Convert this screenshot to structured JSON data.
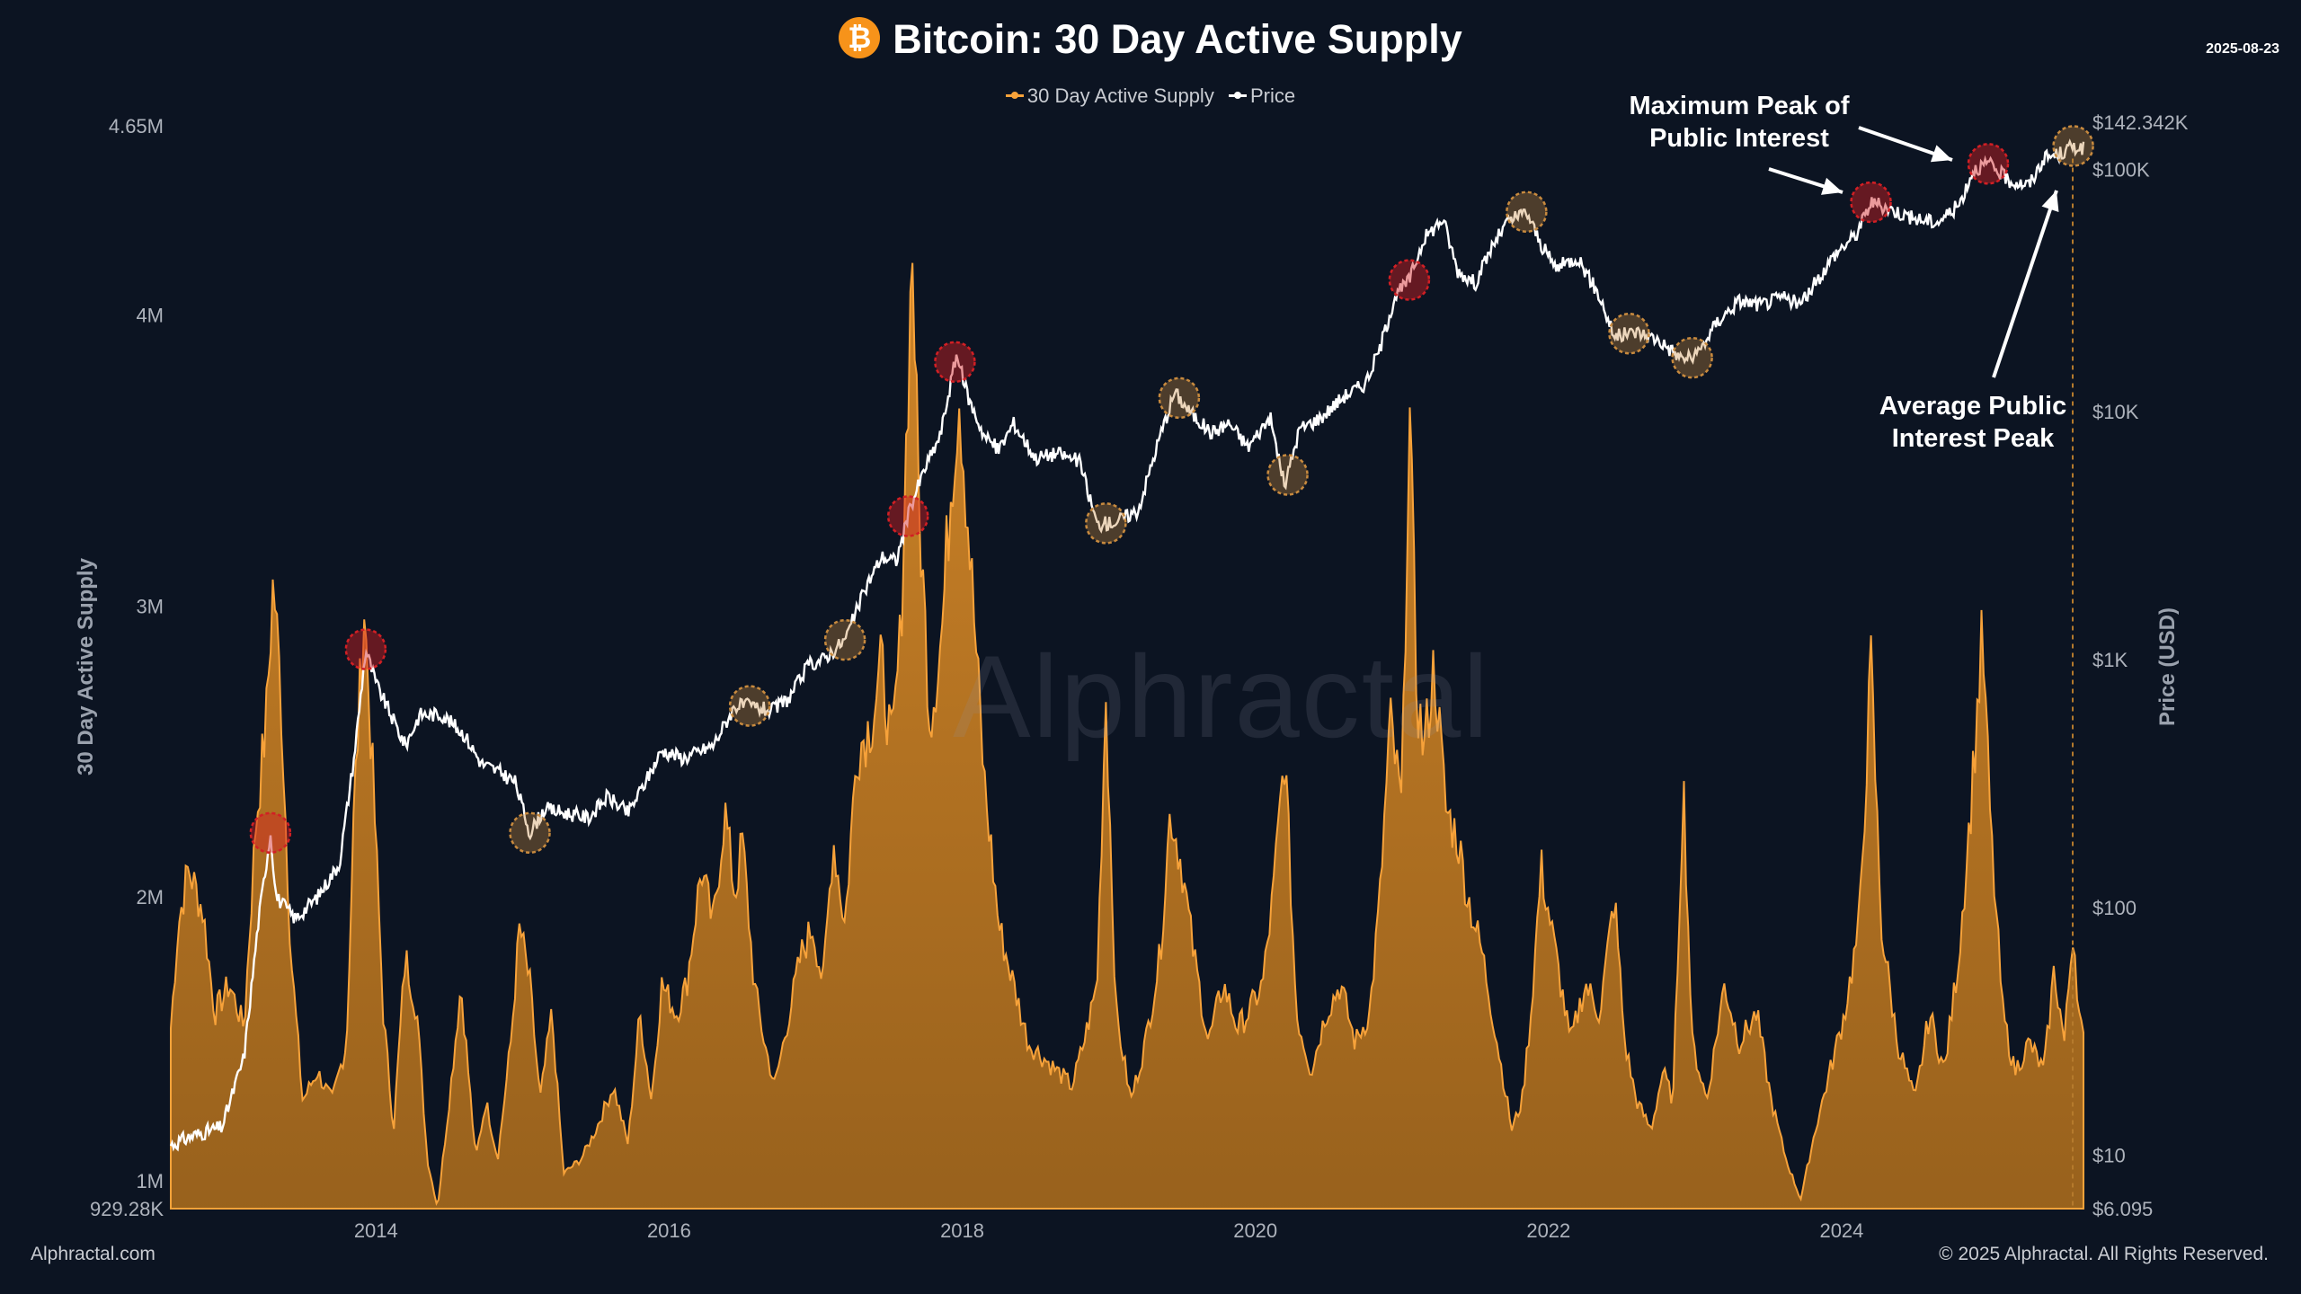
{
  "header": {
    "title": "Bitcoin: 30 Day Active Supply",
    "logo_glyph": "₿",
    "date": "2025-08-23",
    "watermark": "Alphractal"
  },
  "legend": {
    "supply_label": "30 Day Active Supply",
    "price_label": "Price"
  },
  "footer": {
    "left": "Alphractal.com",
    "right": "© 2025 Alphractal. All Rights Reserved."
  },
  "annotations": {
    "max_peak": [
      "Maximum Peak of",
      "Public Interest"
    ],
    "avg_peak": [
      "Average Public",
      "Interest Peak"
    ]
  },
  "colors": {
    "background": "#0c1422",
    "supply_fill": "#b8741f",
    "supply_line": "#f7a23a",
    "price_line": "#ffffff",
    "max_peak_marker": "#d21f24",
    "avg_peak_marker": "#c88a3e",
    "logo": "#f7931a"
  },
  "chart_data": {
    "type": "area",
    "title": "Bitcoin: 30 Day Active Supply",
    "x_range": [
      2012.6,
      2025.65
    ],
    "x_ticks": [
      "2014",
      "2016",
      "2018",
      "2020",
      "2022",
      "2024"
    ],
    "left_axis": {
      "label": "30 Day Active Supply",
      "ticks": [
        "929.28K",
        "1M",
        "2M",
        "3M",
        "4M",
        "4.65M"
      ],
      "range_labels": [
        "929.28K",
        "4.65M"
      ]
    },
    "right_axis": {
      "label": "Price (USD)",
      "scale": "log",
      "ticks": [
        "$6.095",
        "$10",
        "$100",
        "$1K",
        "$10K",
        "$100K",
        "$142.342K"
      ]
    },
    "grid": false,
    "legend_position": "top-center",
    "series": [
      {
        "name": "30 Day Active Supply",
        "points": [
          [
            2012.6,
            1.55
          ],
          [
            2012.65,
            1.9
          ],
          [
            2012.72,
            2.1
          ],
          [
            2012.82,
            1.95
          ],
          [
            2012.9,
            1.6
          ],
          [
            2013.0,
            1.7
          ],
          [
            2013.1,
            1.55
          ],
          [
            2013.18,
            2.25
          ],
          [
            2013.25,
            2.6
          ],
          [
            2013.3,
            3.1
          ],
          [
            2013.35,
            2.7
          ],
          [
            2013.42,
            1.8
          ],
          [
            2013.5,
            1.3
          ],
          [
            2013.6,
            1.4
          ],
          [
            2013.7,
            1.3
          ],
          [
            2013.8,
            1.5
          ],
          [
            2013.85,
            2.3
          ],
          [
            2013.92,
            3.0
          ],
          [
            2013.98,
            2.4
          ],
          [
            2014.05,
            1.6
          ],
          [
            2014.12,
            1.2
          ],
          [
            2014.2,
            1.8
          ],
          [
            2014.28,
            1.6
          ],
          [
            2014.35,
            1.1
          ],
          [
            2014.42,
            0.93
          ],
          [
            2014.5,
            1.3
          ],
          [
            2014.58,
            1.7
          ],
          [
            2014.68,
            1.1
          ],
          [
            2014.75,
            1.3
          ],
          [
            2014.83,
            1.1
          ],
          [
            2014.92,
            1.5
          ],
          [
            2014.98,
            1.9
          ],
          [
            2015.05,
            1.7
          ],
          [
            2015.12,
            1.3
          ],
          [
            2015.2,
            1.6
          ],
          [
            2015.28,
            1.05
          ],
          [
            2015.4,
            1.1
          ],
          [
            2015.5,
            1.2
          ],
          [
            2015.62,
            1.35
          ],
          [
            2015.72,
            1.15
          ],
          [
            2015.8,
            1.6
          ],
          [
            2015.88,
            1.3
          ],
          [
            2015.95,
            1.7
          ],
          [
            2016.05,
            1.6
          ],
          [
            2016.12,
            1.7
          ],
          [
            2016.22,
            2.1
          ],
          [
            2016.3,
            1.9
          ],
          [
            2016.38,
            2.3
          ],
          [
            2016.45,
            2.0
          ],
          [
            2016.5,
            2.2
          ],
          [
            2016.58,
            1.7
          ],
          [
            2016.65,
            1.5
          ],
          [
            2016.72,
            1.35
          ],
          [
            2016.82,
            1.6
          ],
          [
            2016.9,
            1.8
          ],
          [
            2016.98,
            1.9
          ],
          [
            2017.05,
            1.7
          ],
          [
            2017.12,
            2.2
          ],
          [
            2017.2,
            1.9
          ],
          [
            2017.28,
            2.5
          ],
          [
            2017.38,
            2.6
          ],
          [
            2017.45,
            2.8
          ],
          [
            2017.52,
            2.5
          ],
          [
            2017.58,
            2.9
          ],
          [
            2017.62,
            3.6
          ],
          [
            2017.66,
            4.25
          ],
          [
            2017.7,
            3.4
          ],
          [
            2017.78,
            2.6
          ],
          [
            2017.86,
            2.9
          ],
          [
            2017.92,
            3.4
          ],
          [
            2017.98,
            3.75
          ],
          [
            2018.05,
            3.2
          ],
          [
            2018.15,
            2.4
          ],
          [
            2018.25,
            1.9
          ],
          [
            2018.35,
            1.7
          ],
          [
            2018.45,
            1.5
          ],
          [
            2018.55,
            1.45
          ],
          [
            2018.65,
            1.4
          ],
          [
            2018.75,
            1.35
          ],
          [
            2018.83,
            1.5
          ],
          [
            2018.92,
            1.7
          ],
          [
            2018.98,
            2.7
          ],
          [
            2019.05,
            1.6
          ],
          [
            2019.15,
            1.3
          ],
          [
            2019.25,
            1.5
          ],
          [
            2019.35,
            1.8
          ],
          [
            2019.42,
            2.3
          ],
          [
            2019.5,
            2.1
          ],
          [
            2019.58,
            1.8
          ],
          [
            2019.68,
            1.5
          ],
          [
            2019.78,
            1.7
          ],
          [
            2019.88,
            1.55
          ],
          [
            2019.95,
            1.6
          ],
          [
            2020.05,
            1.7
          ],
          [
            2020.12,
            2.0
          ],
          [
            2020.2,
            2.5
          ],
          [
            2020.28,
            1.6
          ],
          [
            2020.38,
            1.4
          ],
          [
            2020.48,
            1.6
          ],
          [
            2020.58,
            1.7
          ],
          [
            2020.68,
            1.5
          ],
          [
            2020.78,
            1.6
          ],
          [
            2020.85,
            2.0
          ],
          [
            2020.92,
            2.6
          ],
          [
            2021.0,
            2.3
          ],
          [
            2021.05,
            3.7
          ],
          [
            2021.1,
            2.7
          ],
          [
            2021.15,
            2.5
          ],
          [
            2021.22,
            2.8
          ],
          [
            2021.3,
            2.3
          ],
          [
            2021.38,
            2.2
          ],
          [
            2021.45,
            2.0
          ],
          [
            2021.55,
            1.8
          ],
          [
            2021.65,
            1.5
          ],
          [
            2021.75,
            1.2
          ],
          [
            2021.82,
            1.3
          ],
          [
            2021.88,
            1.6
          ],
          [
            2021.95,
            2.1
          ],
          [
            2022.05,
            1.8
          ],
          [
            2022.15,
            1.5
          ],
          [
            2022.25,
            1.7
          ],
          [
            2022.35,
            1.6
          ],
          [
            2022.45,
            2.0
          ],
          [
            2022.52,
            1.5
          ],
          [
            2022.6,
            1.3
          ],
          [
            2022.7,
            1.2
          ],
          [
            2022.78,
            1.4
          ],
          [
            2022.85,
            1.3
          ],
          [
            2022.92,
            2.4
          ],
          [
            2022.98,
            1.5
          ],
          [
            2023.08,
            1.3
          ],
          [
            2023.2,
            1.7
          ],
          [
            2023.3,
            1.5
          ],
          [
            2023.42,
            1.6
          ],
          [
            2023.52,
            1.3
          ],
          [
            2023.62,
            1.1
          ],
          [
            2023.72,
            0.96
          ],
          [
            2023.82,
            1.2
          ],
          [
            2023.92,
            1.4
          ],
          [
            2024.02,
            1.6
          ],
          [
            2024.12,
            1.9
          ],
          [
            2024.2,
            2.8
          ],
          [
            2024.27,
            1.9
          ],
          [
            2024.38,
            1.5
          ],
          [
            2024.5,
            1.3
          ],
          [
            2024.6,
            1.6
          ],
          [
            2024.7,
            1.4
          ],
          [
            2024.8,
            1.8
          ],
          [
            2024.88,
            2.3
          ],
          [
            2024.96,
            2.9
          ],
          [
            2025.02,
            2.2
          ],
          [
            2025.1,
            1.6
          ],
          [
            2025.18,
            1.4
          ],
          [
            2025.28,
            1.5
          ],
          [
            2025.38,
            1.4
          ],
          [
            2025.45,
            1.75
          ],
          [
            2025.52,
            1.5
          ],
          [
            2025.58,
            1.9
          ],
          [
            2025.62,
            1.6
          ],
          [
            2025.65,
            1.5
          ]
        ]
      },
      {
        "name": "Price",
        "points": [
          [
            2012.6,
            11
          ],
          [
            2012.75,
            12
          ],
          [
            2012.95,
            13
          ],
          [
            2013.1,
            25
          ],
          [
            2013.2,
            90
          ],
          [
            2013.28,
            200
          ],
          [
            2013.32,
            110
          ],
          [
            2013.45,
            90
          ],
          [
            2013.6,
            110
          ],
          [
            2013.75,
            150
          ],
          [
            2013.85,
            400
          ],
          [
            2013.93,
            1100
          ],
          [
            2014.0,
            800
          ],
          [
            2014.1,
            600
          ],
          [
            2014.2,
            450
          ],
          [
            2014.3,
            600
          ],
          [
            2014.45,
            600
          ],
          [
            2014.6,
            500
          ],
          [
            2014.72,
            380
          ],
          [
            2014.85,
            350
          ],
          [
            2014.95,
            320
          ],
          [
            2015.05,
            200
          ],
          [
            2015.15,
            250
          ],
          [
            2015.3,
            240
          ],
          [
            2015.45,
            230
          ],
          [
            2015.58,
            280
          ],
          [
            2015.72,
            240
          ],
          [
            2015.85,
            330
          ],
          [
            2015.95,
            430
          ],
          [
            2016.1,
            400
          ],
          [
            2016.3,
            450
          ],
          [
            2016.45,
            650
          ],
          [
            2016.55,
            650
          ],
          [
            2016.7,
            620
          ],
          [
            2016.82,
            700
          ],
          [
            2016.95,
            950
          ],
          [
            2017.05,
            1000
          ],
          [
            2017.2,
            1200
          ],
          [
            2017.35,
            2000
          ],
          [
            2017.45,
            2600
          ],
          [
            2017.55,
            2500
          ],
          [
            2017.65,
            4200
          ],
          [
            2017.75,
            6000
          ],
          [
            2017.85,
            8000
          ],
          [
            2017.96,
            17000
          ],
          [
            2018.05,
            11000
          ],
          [
            2018.15,
            8000
          ],
          [
            2018.25,
            7000
          ],
          [
            2018.35,
            9000
          ],
          [
            2018.5,
            6500
          ],
          [
            2018.65,
            6800
          ],
          [
            2018.8,
            6300
          ],
          [
            2018.92,
            3500
          ],
          [
            2019.05,
            3600
          ],
          [
            2019.2,
            4000
          ],
          [
            2019.35,
            8000
          ],
          [
            2019.45,
            12000
          ],
          [
            2019.55,
            10000
          ],
          [
            2019.7,
            8200
          ],
          [
            2019.82,
            9000
          ],
          [
            2019.95,
            7200
          ],
          [
            2020.1,
            9500
          ],
          [
            2020.2,
            5000
          ],
          [
            2020.3,
            8500
          ],
          [
            2020.45,
            9500
          ],
          [
            2020.6,
            11500
          ],
          [
            2020.75,
            13000
          ],
          [
            2020.85,
            18000
          ],
          [
            2020.95,
            29000
          ],
          [
            2021.05,
            34000
          ],
          [
            2021.15,
            50000
          ],
          [
            2021.28,
            60000
          ],
          [
            2021.38,
            37000
          ],
          [
            2021.5,
            33000
          ],
          [
            2021.62,
            47000
          ],
          [
            2021.72,
            58000
          ],
          [
            2021.85,
            64000
          ],
          [
            2021.95,
            47000
          ],
          [
            2022.05,
            38000
          ],
          [
            2022.2,
            42000
          ],
          [
            2022.35,
            29000
          ],
          [
            2022.45,
            20000
          ],
          [
            2022.6,
            21000
          ],
          [
            2022.75,
            19500
          ],
          [
            2022.9,
            16500
          ],
          [
            2023.0,
            16500
          ],
          [
            2023.15,
            23000
          ],
          [
            2023.3,
            28000
          ],
          [
            2023.45,
            27000
          ],
          [
            2023.6,
            29000
          ],
          [
            2023.72,
            27000
          ],
          [
            2023.85,
            35000
          ],
          [
            2023.95,
            43000
          ],
          [
            2024.1,
            52000
          ],
          [
            2024.2,
            70000
          ],
          [
            2024.35,
            65000
          ],
          [
            2024.5,
            60000
          ],
          [
            2024.65,
            58000
          ],
          [
            2024.8,
            68000
          ],
          [
            2024.9,
            95000
          ],
          [
            2025.0,
            100000
          ],
          [
            2025.15,
            85000
          ],
          [
            2025.28,
            82000
          ],
          [
            2025.38,
            105000
          ],
          [
            2025.5,
            110000
          ],
          [
            2025.58,
            118000
          ],
          [
            2025.65,
            115000
          ]
        ]
      }
    ],
    "peak_markers": {
      "max_public_interest": [
        2013.28,
        2013.93,
        2017.63,
        2017.95,
        2021.05,
        2024.2,
        2025.0
      ],
      "average_public_interest": [
        2015.05,
        2016.55,
        2017.2,
        2018.98,
        2019.48,
        2020.22,
        2021.85,
        2022.55,
        2022.98,
        2025.58
      ]
    }
  }
}
